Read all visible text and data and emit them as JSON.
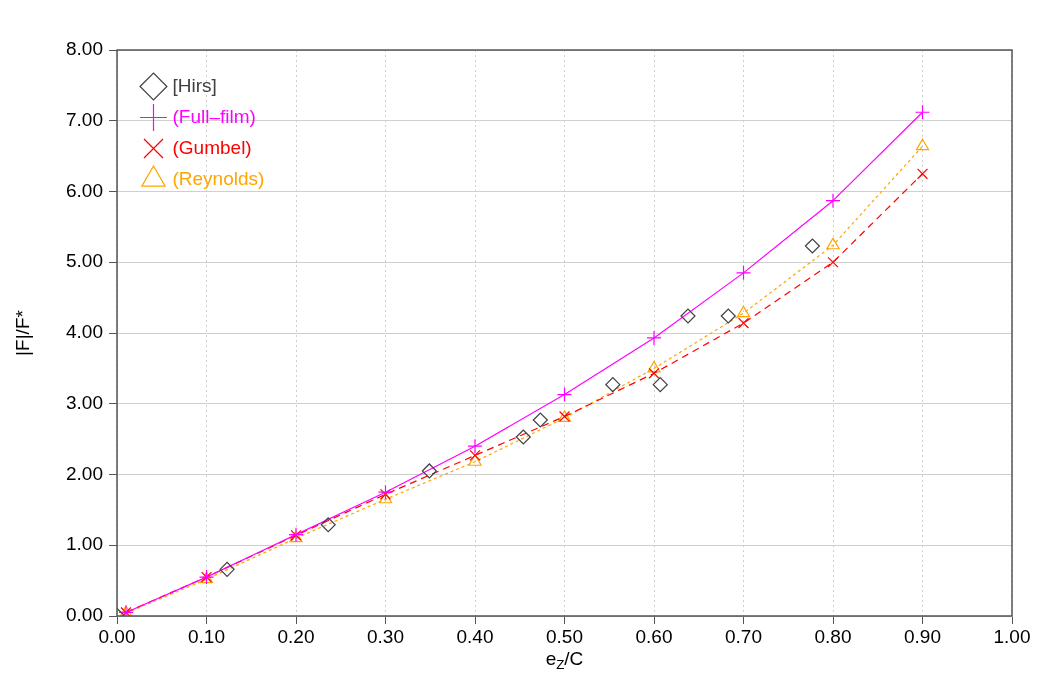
{
  "chart_data": {
    "type": "line",
    "xlabel": "e$_{Z}$/C",
    "ylabel": "|F|/F*",
    "xlim": [
      0,
      1
    ],
    "xticks": [
      {
        "value": 0,
        "label": "0.00"
      },
      {
        "value": 0.1,
        "label": "0.10"
      },
      {
        "value": 0.2,
        "label": "0.20"
      },
      {
        "value": 0.3,
        "label": "0.30"
      },
      {
        "value": 0.4,
        "label": "0.40"
      },
      {
        "value": 0.5,
        "label": "0.50"
      },
      {
        "value": 0.6,
        "label": "0.60"
      },
      {
        "value": 0.7,
        "label": "0.70"
      },
      {
        "value": 0.8,
        "label": "0.80"
      },
      {
        "value": 0.9,
        "label": "0.90"
      },
      {
        "value": 1,
        "label": "1.00"
      }
    ],
    "ylim": [
      0,
      8
    ],
    "yticks": [
      {
        "value": 0,
        "label": "0.00"
      },
      {
        "value": 1,
        "label": "1.00"
      },
      {
        "value": 2,
        "label": "2.00"
      },
      {
        "value": 3,
        "label": "3.00"
      },
      {
        "value": 4,
        "label": "4.00"
      },
      {
        "value": 5,
        "label": "5.00"
      },
      {
        "value": 6,
        "label": "6.00"
      },
      {
        "value": 7,
        "label": "7.00"
      },
      {
        "value": 8,
        "label": "8.00"
      }
    ],
    "grid": true,
    "legend": "top left",
    "series": [
      {
        "name": "[Hirs]",
        "type": "scatter",
        "marker": "diamond",
        "color": "#404040",
        "x": [
          0,
          0.123,
          0.236,
          0.349,
          0.454,
          0.473,
          0.554,
          0.607,
          0.638,
          0.683,
          0.777
        ],
        "values": [
          0.01,
          0.66,
          1.29,
          2.05,
          2.53,
          2.77,
          3.27,
          3.27,
          4.24,
          4.24,
          5.23
        ]
      },
      {
        "name": "(Full–film)",
        "type": "line",
        "marker": "plus",
        "line_style": "solid",
        "color": "#ff00ff",
        "x": [
          0.01,
          0.1,
          0.2,
          0.3,
          0.4,
          0.5,
          0.6,
          0.7,
          0.8,
          0.9
        ],
        "values": [
          0.05,
          0.55,
          1.15,
          1.75,
          2.4,
          3.13,
          3.93,
          4.85,
          5.87,
          7.12
        ]
      },
      {
        "name": "(Gumbel)",
        "type": "line",
        "marker": "cross",
        "line_style": "dashed",
        "color": "#ff0000",
        "x": [
          0.01,
          0.1,
          0.2,
          0.3,
          0.4,
          0.5,
          0.6,
          0.7,
          0.8,
          0.9
        ],
        "values": [
          0.05,
          0.55,
          1.14,
          1.72,
          2.27,
          2.82,
          3.43,
          4.14,
          5.0,
          6.25
        ]
      },
      {
        "name": "(Reynolds)",
        "type": "line",
        "marker": "triangle",
        "line_style": "dotted",
        "color": "#ffa500",
        "x": [
          0.01,
          0.1,
          0.2,
          0.3,
          0.4,
          0.5,
          0.6,
          0.7,
          0.8,
          0.9
        ],
        "values": [
          0.04,
          0.52,
          1.1,
          1.65,
          2.18,
          2.8,
          3.5,
          4.28,
          5.24,
          6.64
        ]
      }
    ]
  }
}
